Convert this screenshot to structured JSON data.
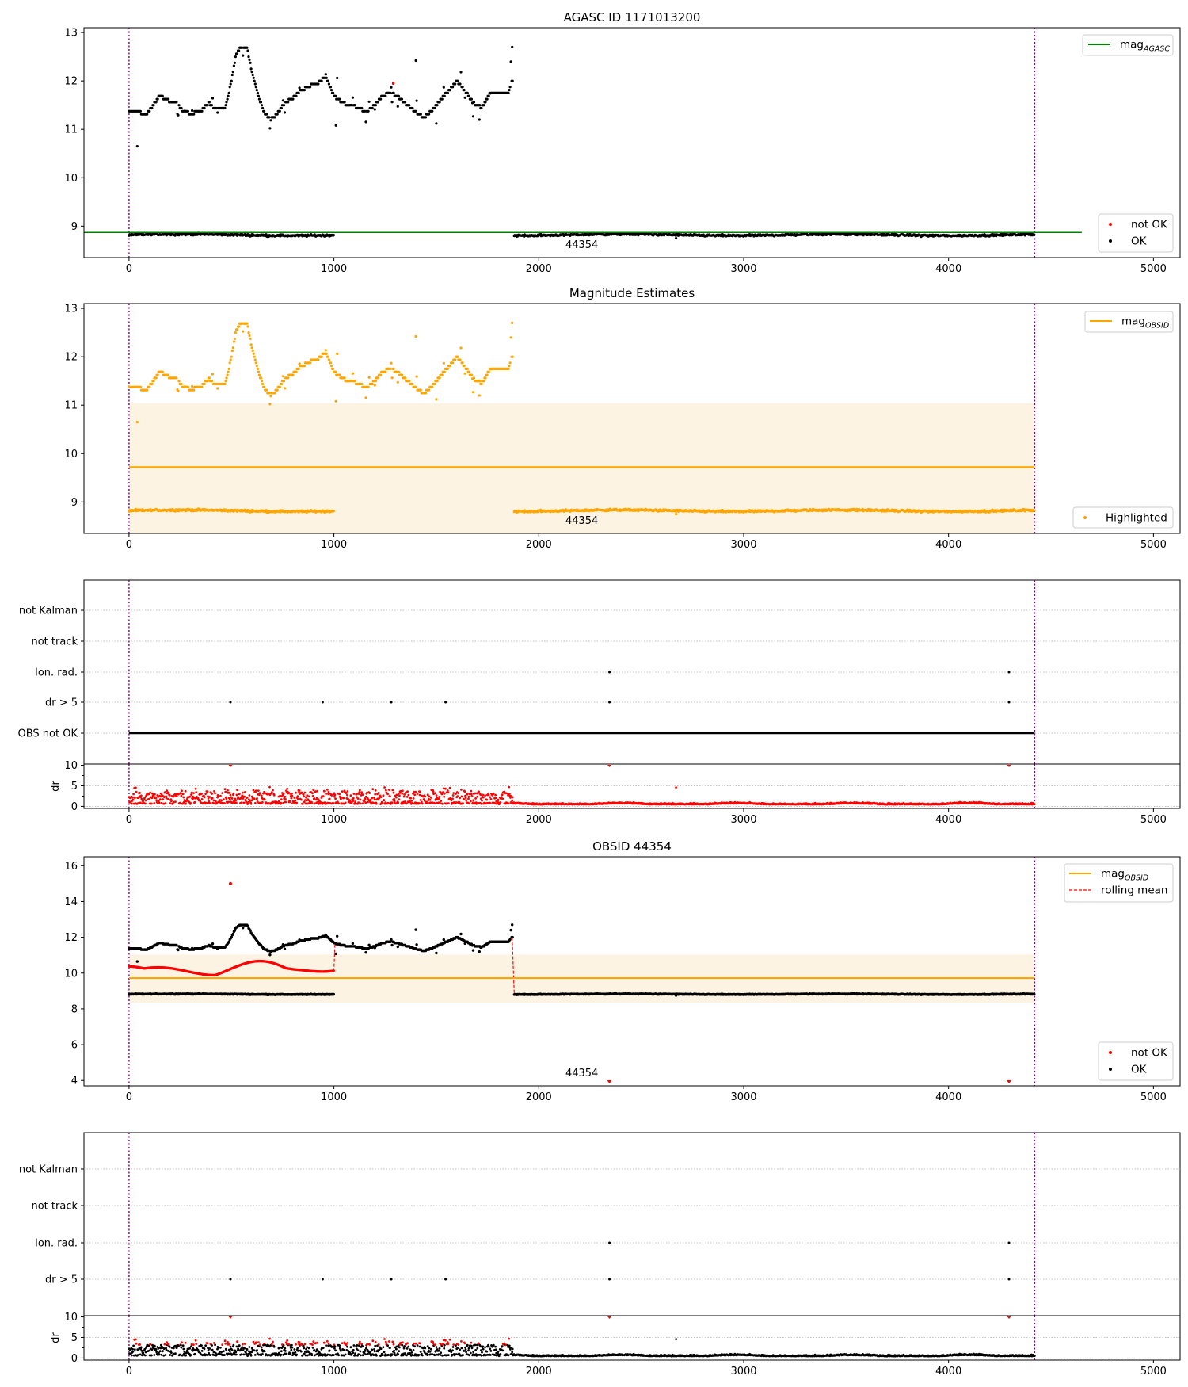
{
  "chart_data": [
    {
      "panel": "agasc",
      "type": "scatter",
      "title": "AGASC ID 1171013200",
      "xlim": [
        -220,
        5130
      ],
      "ylim": [
        8.35,
        13.1
      ],
      "xticks": [
        0,
        1000,
        2000,
        3000,
        4000,
        5000
      ],
      "yticks": [
        9,
        10,
        11,
        12,
        13
      ],
      "ref_line": {
        "name": "mag",
        "subscript": "AGASC",
        "value": 8.87,
        "x": [
          -220,
          4650
        ],
        "color": "#008000"
      },
      "legend_lines": [
        {
          "name": "mag",
          "subscript": "AGASC",
          "color": "#008000"
        }
      ],
      "legend_points": [
        {
          "name": "not OK",
          "color": "#ff0000"
        },
        {
          "name": "OK",
          "color": "#000000"
        }
      ],
      "obs_boundaries": [
        0,
        4420
      ],
      "obs_label": {
        "text": "44354",
        "x": 2210
      },
      "series": [
        {
          "name": "OK",
          "color": "#000000"
        },
        {
          "name": "not OK",
          "color": "#ff0000"
        }
      ]
    },
    {
      "panel": "magest",
      "type": "scatter",
      "title": "Magnitude Estimates",
      "xlim": [
        -220,
        5130
      ],
      "ylim": [
        8.35,
        13.1
      ],
      "xticks": [
        0,
        1000,
        2000,
        3000,
        4000,
        5000
      ],
      "yticks": [
        9,
        10,
        11,
        12,
        13
      ],
      "ref_line": {
        "name": "mag",
        "subscript": "OBSID",
        "value": 9.72,
        "x": [
          0,
          4420
        ],
        "color": "#ffa500"
      },
      "band": {
        "y": [
          8.35,
          11.04
        ],
        "x": [
          0,
          4420
        ],
        "color": "#fdf3e2"
      },
      "legend_lines": [
        {
          "name": "mag",
          "subscript": "OBSID",
          "color": "#ffa500"
        }
      ],
      "legend_points": [
        {
          "name": "Highlighted",
          "color": "#ffa500"
        }
      ],
      "obs_boundaries": [
        0,
        4420
      ],
      "obs_label": {
        "text": "44354",
        "x": 2210
      },
      "series": [
        {
          "name": "Highlighted",
          "color": "#ffa500"
        }
      ]
    },
    {
      "panel": "flags1",
      "type": "scatter",
      "xlim": [
        -220,
        5130
      ],
      "categories": [
        "OBS not OK",
        "dr > 5",
        "Ion. rad.",
        "not track",
        "not Kalman"
      ],
      "obs_boundaries": [
        0,
        4420
      ],
      "obs_not_ok_span": [
        0,
        4420
      ],
      "dr_gt5_x": [
        495,
        945,
        1280,
        1545,
        2345,
        4295
      ],
      "ion_rad_x": [
        2345,
        4295
      ],
      "series": [
        {
          "name": "flags",
          "color": "#000000"
        }
      ]
    },
    {
      "panel": "dr1",
      "type": "scatter",
      "xlim": [
        -220,
        5130
      ],
      "ylim": [
        -0.5,
        10.3
      ],
      "yticks": [
        0,
        5,
        10
      ],
      "ylabel": "dr",
      "gridlines": [
        0,
        5,
        10
      ],
      "obs_boundaries": [
        0,
        4420
      ],
      "capped_points_x": [
        495,
        2345,
        4295
      ],
      "series": [
        {
          "name": "dr",
          "color": "#ff0000"
        }
      ]
    },
    {
      "panel": "obsid",
      "type": "scatter",
      "title": "OBSID 44354",
      "xlim": [
        -220,
        5130
      ],
      "ylim": [
        3.7,
        16.5
      ],
      "xticks": [
        0,
        1000,
        2000,
        3000,
        4000,
        5000
      ],
      "yticks": [
        4,
        6,
        8,
        10,
        12,
        14,
        16
      ],
      "ref_line": {
        "name": "mag",
        "subscript": "OBSID",
        "value": 9.72,
        "x": [
          0,
          4420
        ],
        "color": "#ffa500"
      },
      "band": {
        "y": [
          8.35,
          11.04
        ],
        "x": [
          0,
          4420
        ],
        "color": "#fdf3e2"
      },
      "legend_lines": [
        {
          "name": "mag",
          "subscript": "OBSID",
          "color": "#ffa500"
        },
        {
          "name": "rolling mean",
          "color": "#ff0000",
          "dashed": true
        }
      ],
      "legend_points": [
        {
          "name": "not OK",
          "color": "#ff0000"
        },
        {
          "name": "OK",
          "color": "#000000"
        }
      ],
      "obs_boundaries": [
        0,
        4420
      ],
      "obs_label": {
        "text": "44354",
        "x": 2210
      },
      "outliers": [
        {
          "x": 495,
          "y": 15.0
        }
      ],
      "below_markers_x": [
        2345,
        4295
      ],
      "series": [
        {
          "name": "OK",
          "color": "#000000"
        },
        {
          "name": "not OK",
          "color": "#ff0000"
        },
        {
          "name": "rolling mean",
          "color": "#ff0000"
        }
      ]
    },
    {
      "panel": "flags2",
      "type": "scatter",
      "xlim": [
        -220,
        5130
      ],
      "categories": [
        "dr > 5",
        "Ion. rad.",
        "not track",
        "not Kalman"
      ],
      "obs_boundaries": [
        0,
        4420
      ],
      "dr_gt5_x": [
        495,
        945,
        1280,
        1545,
        2345,
        4295
      ],
      "ion_rad_x": [
        2345,
        4295
      ],
      "series": [
        {
          "name": "flags",
          "color": "#000000"
        }
      ]
    },
    {
      "panel": "dr2",
      "type": "scatter",
      "xlim": [
        -220,
        5130
      ],
      "ylim": [
        -0.5,
        10.3
      ],
      "yticks": [
        0,
        5,
        10
      ],
      "xticks": [
        0,
        1000,
        2000,
        3000,
        4000,
        5000
      ],
      "ylabel": "dr",
      "gridlines": [
        0,
        5,
        10
      ],
      "obs_boundaries": [
        0,
        4420
      ],
      "capped_points_x": [
        495,
        2345,
        4295
      ],
      "series": [
        {
          "name": "dr OK",
          "color": "#000000"
        },
        {
          "name": "dr not OK",
          "color": "#ff0000"
        }
      ]
    }
  ]
}
